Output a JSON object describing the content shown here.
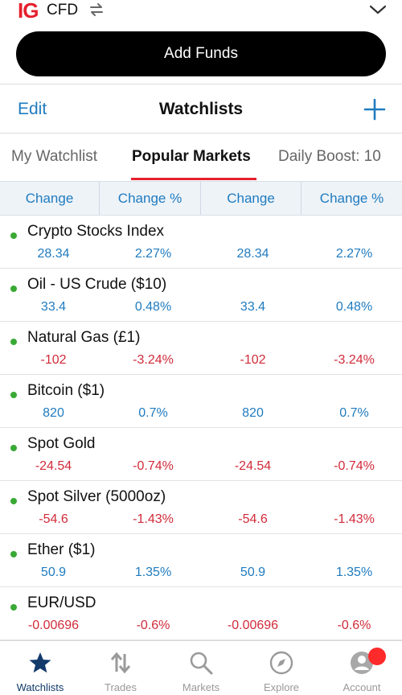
{
  "header": {
    "logo_text": "IG",
    "account_type": "CFD",
    "add_funds_label": "Add Funds",
    "edit_label": "Edit",
    "title": "Watchlists"
  },
  "tabs": [
    {
      "label": "My Watchlist",
      "active": false
    },
    {
      "label": "Popular Markets",
      "active": true
    },
    {
      "label": "Daily Boost: 10",
      "active": false
    }
  ],
  "columns": [
    "Change",
    "Change %",
    "Change",
    "Change %"
  ],
  "markets": [
    {
      "name": "Crypto Stocks Index",
      "change": "28.34",
      "change_pct": "2.27%",
      "change2": "28.34",
      "change_pct2": "2.27%",
      "direction": "up"
    },
    {
      "name": "Oil - US Crude ($10)",
      "change": "33.4",
      "change_pct": "0.48%",
      "change2": "33.4",
      "change_pct2": "0.48%",
      "direction": "up"
    },
    {
      "name": "Natural Gas (£1)",
      "change": "-102",
      "change_pct": "-3.24%",
      "change2": "-102",
      "change_pct2": "-3.24%",
      "direction": "down"
    },
    {
      "name": "Bitcoin ($1)",
      "change": "820",
      "change_pct": "0.7%",
      "change2": "820",
      "change_pct2": "0.7%",
      "direction": "up"
    },
    {
      "name": "Spot Gold",
      "change": "-24.54",
      "change_pct": "-0.74%",
      "change2": "-24.54",
      "change_pct2": "-0.74%",
      "direction": "down"
    },
    {
      "name": "Spot Silver (5000oz)",
      "change": "-54.6",
      "change_pct": "-1.43%",
      "change2": "-54.6",
      "change_pct2": "-1.43%",
      "direction": "down"
    },
    {
      "name": "Ether ($1)",
      "change": "50.9",
      "change_pct": "1.35%",
      "change2": "50.9",
      "change_pct2": "1.35%",
      "direction": "up"
    },
    {
      "name": "EUR/USD",
      "change": "-0.00696",
      "change_pct": "-0.6%",
      "change2": "-0.00696",
      "change_pct2": "-0.6%",
      "direction": "down"
    }
  ],
  "nav": [
    {
      "label": "Watchlists",
      "icon": "star-icon",
      "active": true
    },
    {
      "label": "Trades",
      "icon": "trades-arrows-icon",
      "active": false
    },
    {
      "label": "Markets",
      "icon": "search-icon",
      "active": false
    },
    {
      "label": "Explore",
      "icon": "compass-icon",
      "active": false
    },
    {
      "label": "Account",
      "icon": "account-icon",
      "active": false
    }
  ],
  "colors": {
    "brand_red": "#e61f2d",
    "link_blue": "#1f7bbf",
    "positive": "#1f7bbf",
    "negative": "#d12b3a",
    "market_open_dot": "#39a935",
    "nav_active": "#123a6b"
  }
}
